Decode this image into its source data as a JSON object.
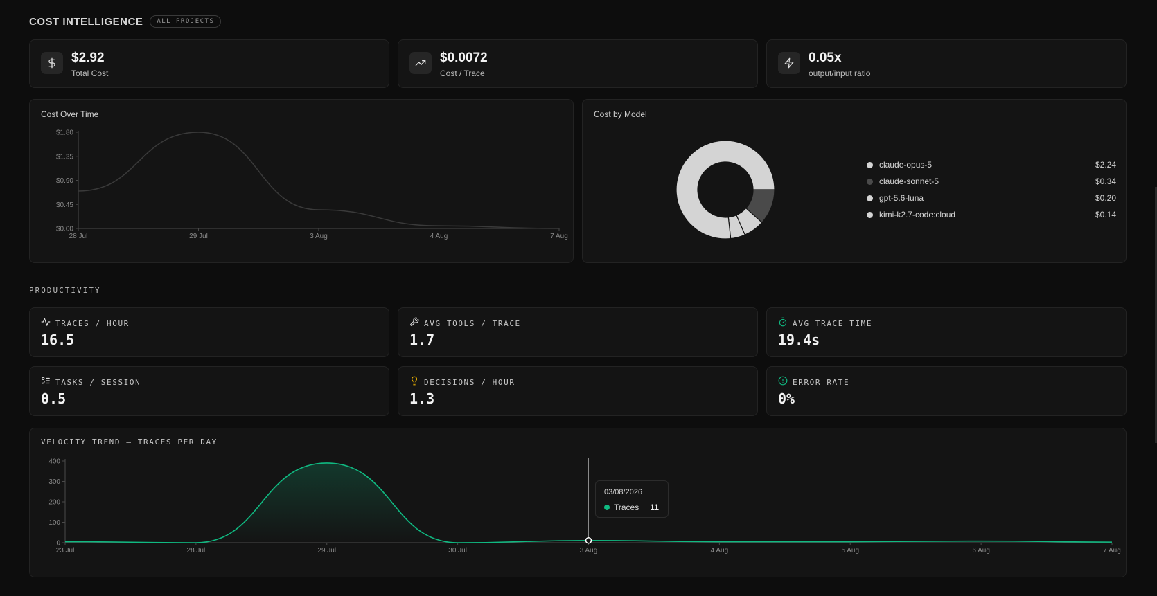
{
  "cost": {
    "section_title": "COST INTELLIGENCE",
    "badge": "ALL PROJECTS",
    "stats": [
      {
        "icon": "dollar-icon",
        "value": "$2.92",
        "label": "Total Cost"
      },
      {
        "icon": "trending-up-icon",
        "value": "$0.0072",
        "label": "Cost / Trace"
      },
      {
        "icon": "lightning-icon",
        "value": "0.05x",
        "label": "output/input ratio"
      }
    ],
    "over_time_title": "Cost Over Time",
    "by_model_title": "Cost by Model",
    "models": [
      {
        "name": "claude-opus-5",
        "amount": "$2.24",
        "color": "#d4d4d4"
      },
      {
        "name": "claude-sonnet-5",
        "amount": "$0.34",
        "color": "#4a4a4a"
      },
      {
        "name": "gpt-5.6-luna",
        "amount": "$0.20",
        "color": "#d4d4d4"
      },
      {
        "name": "kimi-k2.7-code:cloud",
        "amount": "$0.14",
        "color": "#d4d4d4"
      }
    ]
  },
  "productivity": {
    "section_title": "PRODUCTIVITY",
    "cards": [
      {
        "icon": "activity-icon",
        "label": "TRACES / HOUR",
        "value": "16.5",
        "icon_color": "#e0e0e0"
      },
      {
        "icon": "wrench-icon",
        "label": "AVG TOOLS / TRACE",
        "value": "1.7",
        "icon_color": "#e0e0e0"
      },
      {
        "icon": "timer-icon",
        "label": "AVG TRACE TIME",
        "value": "19.4s",
        "icon_color": "#10b981"
      },
      {
        "icon": "list-checks-icon",
        "label": "TASKS / SESSION",
        "value": "0.5",
        "icon_color": "#e0e0e0"
      },
      {
        "icon": "lightbulb-icon",
        "label": "DECISIONS / HOUR",
        "value": "1.3",
        "icon_color": "#f5b800"
      },
      {
        "icon": "alert-circle-icon",
        "label": "ERROR RATE",
        "value": "0%",
        "icon_color": "#10b981"
      }
    ],
    "velocity_title": "VELOCITY TREND — TRACES PER DAY",
    "tooltip": {
      "date": "03/08/2026",
      "series": "Traces",
      "value": "11"
    }
  },
  "chart_data": [
    {
      "type": "line",
      "title": "Cost Over Time",
      "x": [
        "28 Jul",
        "29 Jul",
        "3 Aug",
        "4 Aug",
        "7 Aug"
      ],
      "series": [
        {
          "values": [
            0.7,
            1.8,
            0.35,
            0.05,
            0.0
          ]
        }
      ],
      "y_ticks": [
        "$0.00",
        "$0.45",
        "$0.90",
        "$1.35",
        "$1.80"
      ],
      "ylim": [
        0,
        1.8
      ],
      "color": "#3a3a3a"
    },
    {
      "type": "pie",
      "title": "Cost by Model",
      "categories": [
        "claude-opus-5",
        "claude-sonnet-5",
        "gpt-5.6-luna",
        "kimi-k2.7-code:cloud"
      ],
      "values": [
        2.24,
        0.34,
        0.2,
        0.14
      ],
      "donut": true
    },
    {
      "type": "area",
      "title": "VELOCITY TREND — TRACES PER DAY",
      "x": [
        "23 Jul",
        "28 Jul",
        "29 Jul",
        "30 Jul",
        "3 Aug",
        "4 Aug",
        "5 Aug",
        "6 Aug",
        "7 Aug"
      ],
      "series": [
        {
          "name": "Traces",
          "values": [
            5,
            0,
            390,
            0,
            11,
            5,
            5,
            8,
            3
          ]
        }
      ],
      "y_ticks": [
        "0",
        "100",
        "200",
        "300",
        "400"
      ],
      "ylim": [
        0,
        400
      ],
      "color": "#10b981",
      "highlight_index": 4
    }
  ]
}
